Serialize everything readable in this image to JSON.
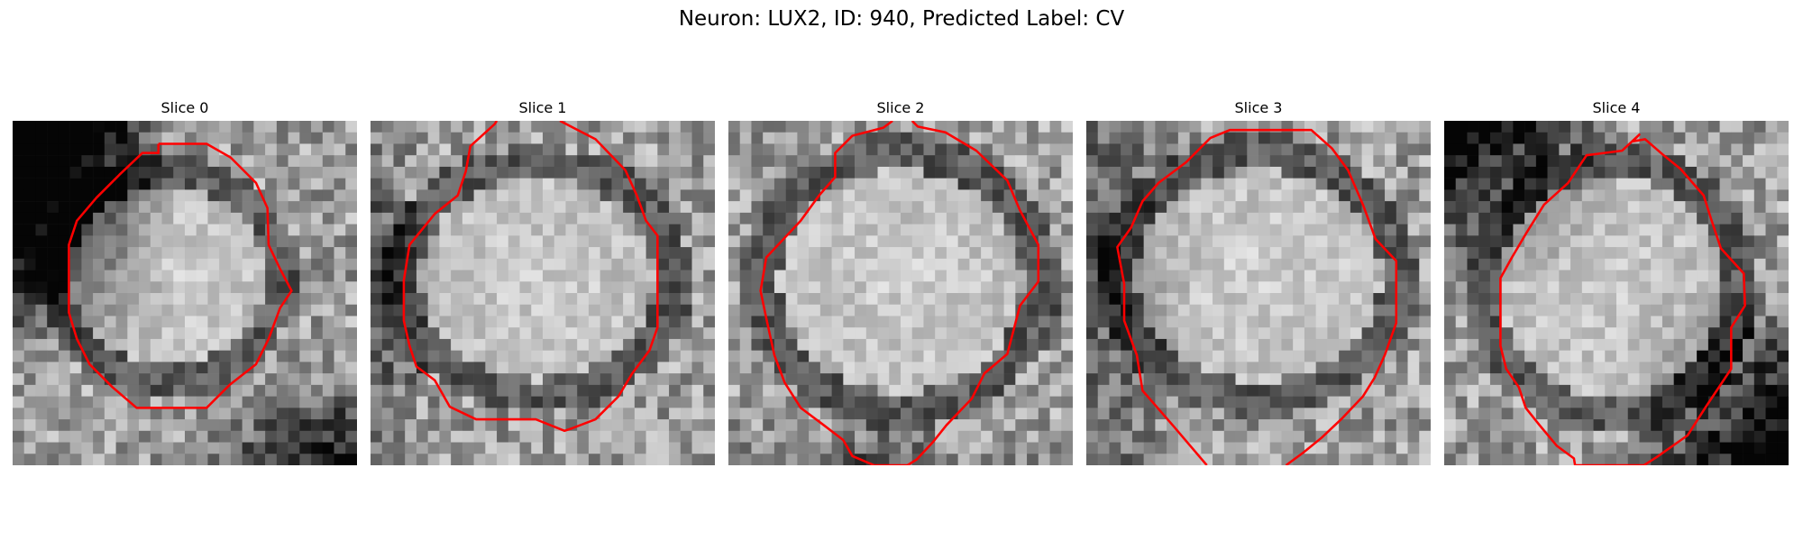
{
  "figure": {
    "title": "Neuron: LUX2, ID: 940, Predicted Label: CV",
    "contour_color": "#ff0000"
  },
  "panels": [
    {
      "title": "Slice 0"
    },
    {
      "title": "Slice 1"
    },
    {
      "title": "Slice 2"
    },
    {
      "title": "Slice 3"
    },
    {
      "title": "Slice 4"
    }
  ]
}
